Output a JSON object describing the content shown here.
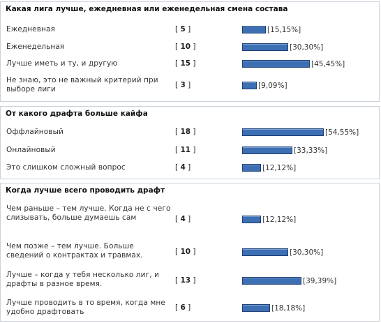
{
  "polls": [
    {
      "title": "Какая лига лучше, ежедневная или еженедельная смена состава",
      "options": [
        {
          "label": "Ежедневная",
          "votes": "5",
          "percent": "15,15%",
          "fraction": 0.1515
        },
        {
          "label": "Еженедельная",
          "votes": "10",
          "percent": "30,30%",
          "fraction": 0.303
        },
        {
          "label": "Лучше иметь и ту, и другую",
          "votes": "15",
          "percent": "45,45%",
          "fraction": 0.4545
        },
        {
          "label": "Не знаю, это не важный критерий при выборе лиги",
          "votes": "3",
          "percent": "9,09%",
          "fraction": 0.0909
        }
      ]
    },
    {
      "title": "От какого драфта больше кайфа",
      "options": [
        {
          "label": "Оффлайновый",
          "votes": "18",
          "percent": "54,55%",
          "fraction": 0.5455
        },
        {
          "label": "Онлайновый",
          "votes": "11",
          "percent": "33,33%",
          "fraction": 0.3333
        },
        {
          "label": "Это слишком сложный вопрос",
          "votes": "4",
          "percent": "12,12%",
          "fraction": 0.1212
        }
      ]
    },
    {
      "title": "Когда лучше всего проводить драфт",
      "options": [
        {
          "label": "Чем раньше – тем лучше. Когда не с чего слизывать, больше думаешь сам",
          "votes": "4",
          "percent": "12,12%",
          "fraction": 0.1212
        },
        {
          "label": "Чем позже – тем лучше. Больше сведений о контрактах и травмах.",
          "votes": "10",
          "percent": "30,30%",
          "fraction": 0.303
        },
        {
          "label": "Лучше – когда у тебя несколько лиг, и драфты в разное время.",
          "votes": "13",
          "percent": "39,39%",
          "fraction": 0.3939
        },
        {
          "label": "Лучше проводить в то время, когда мне удобно драфтовать",
          "votes": "6",
          "percent": "18,18%",
          "fraction": 0.1818
        }
      ]
    }
  ]
}
